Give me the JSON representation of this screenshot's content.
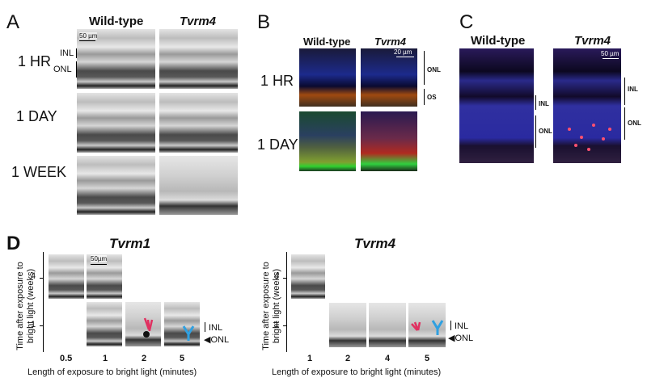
{
  "panels": {
    "A": {
      "letter": "A",
      "col_wt": "Wild-type",
      "col_mut": "Tvrm4",
      "scale": "50 µm",
      "inl": "INL",
      "onl": "ONL",
      "rows": [
        "1 HR",
        "1 DAY",
        "1 WEEK"
      ]
    },
    "B": {
      "letter": "B",
      "col_wt": "Wild-type",
      "col_mut": "Tvrm4",
      "scale": "20 µm",
      "onl": "ONL",
      "os": "OS",
      "rows": [
        "1 HR",
        "1 DAY"
      ]
    },
    "C": {
      "letter": "C",
      "col_wt": "Wild-type",
      "col_mut": "Tvrm4",
      "scale": "50 µm",
      "inl": "INL",
      "onl": "ONL",
      "inl2": "INL",
      "onl2": "ONL"
    },
    "D": {
      "letter": "D",
      "left_title": "Tvrm1",
      "right_title": "Tvrm4",
      "ylabel_line1": "Time after exposure to",
      "ylabel_line2": "bright light (weeks)",
      "xlabel": "Length of exposure to bright light (minutes)",
      "left_y_ticks": [
        "4",
        "1"
      ],
      "right_y_ticks": [
        "4",
        "1"
      ],
      "left_x_ticks": [
        "0.5",
        "1",
        "2",
        "5"
      ],
      "right_x_ticks": [
        "1",
        "2",
        "4",
        "5"
      ],
      "scale": "50µm",
      "inl": "INL",
      "onl": "ONL"
    }
  }
}
